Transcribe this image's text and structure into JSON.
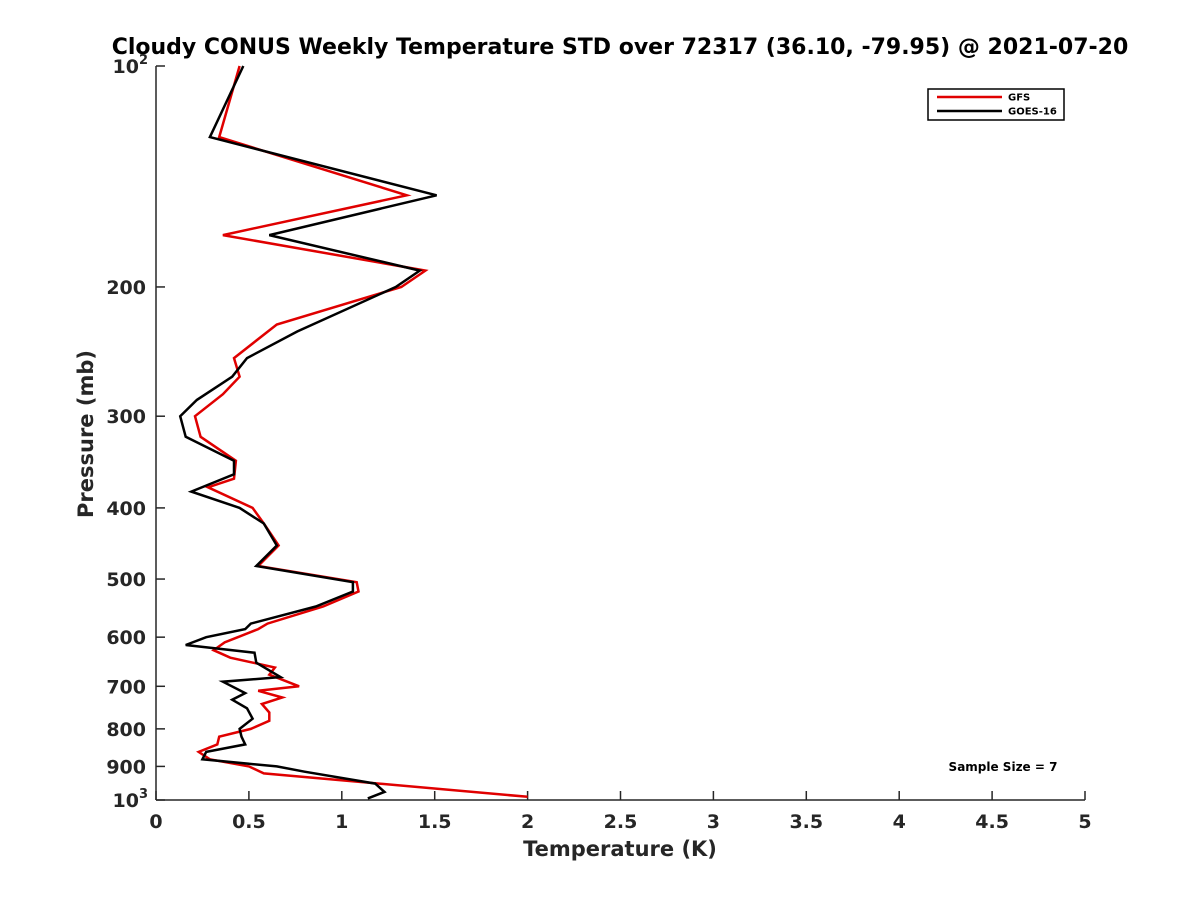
{
  "chart_data": {
    "type": "line",
    "title": "Cloudy CONUS Weekly Temperature STD over 72317 (36.10, -79.95) @ 2021-07-20",
    "xlabel": "Temperature (K)",
    "ylabel": "Pressure (mb)",
    "xlim": [
      0,
      5
    ],
    "ylim": [
      100,
      1000
    ],
    "y_scale": "log",
    "y_reversed": true,
    "x_ticks": [
      "0",
      "0.5",
      "1",
      "1.5",
      "2",
      "2.5",
      "3",
      "3.5",
      "4",
      "4.5",
      "5"
    ],
    "y_ticks": [
      {
        "value": 100,
        "base": "10",
        "exp": "2"
      },
      {
        "value": 200,
        "label": "200"
      },
      {
        "value": 300,
        "label": "300"
      },
      {
        "value": 400,
        "label": "400"
      },
      {
        "value": 500,
        "label": "500"
      },
      {
        "value": 600,
        "label": "600"
      },
      {
        "value": 700,
        "label": "700"
      },
      {
        "value": 800,
        "label": "800"
      },
      {
        "value": 900,
        "label": "900"
      },
      {
        "value": 1000,
        "base": "10",
        "exp": "3"
      }
    ],
    "grid": false,
    "legend_position": "top-right",
    "annotation": "Sample Size = 7",
    "series": [
      {
        "name": "GFS",
        "color": "#e00000",
        "points": [
          [
            0.45,
            100
          ],
          [
            0.34,
            125
          ],
          [
            1.35,
            150
          ],
          [
            0.36,
            170
          ],
          [
            1.45,
            190
          ],
          [
            1.32,
            200
          ],
          [
            0.65,
            225
          ],
          [
            0.42,
            250
          ],
          [
            0.45,
            265
          ],
          [
            0.36,
            280
          ],
          [
            0.21,
            300
          ],
          [
            0.24,
            320
          ],
          [
            0.43,
            345
          ],
          [
            0.42,
            365
          ],
          [
            0.28,
            375
          ],
          [
            0.52,
            400
          ],
          [
            0.58,
            420
          ],
          [
            0.66,
            450
          ],
          [
            0.55,
            480
          ],
          [
            1.08,
            505
          ],
          [
            1.09,
            520
          ],
          [
            0.9,
            545
          ],
          [
            0.6,
            575
          ],
          [
            0.55,
            585
          ],
          [
            0.44,
            600
          ],
          [
            0.37,
            610
          ],
          [
            0.31,
            625
          ],
          [
            0.4,
            640
          ],
          [
            0.64,
            660
          ],
          [
            0.61,
            675
          ],
          [
            0.77,
            700
          ],
          [
            0.55,
            710
          ],
          [
            0.68,
            725
          ],
          [
            0.57,
            740
          ],
          [
            0.61,
            760
          ],
          [
            0.61,
            780
          ],
          [
            0.51,
            800
          ],
          [
            0.34,
            820
          ],
          [
            0.33,
            840
          ],
          [
            0.23,
            860
          ],
          [
            0.29,
            880
          ],
          [
            0.5,
            900
          ],
          [
            0.58,
            920
          ],
          [
            2.0,
            990
          ]
        ]
      },
      {
        "name": "GOES-16",
        "color": "#000000",
        "points": [
          [
            0.47,
            100
          ],
          [
            0.29,
            125
          ],
          [
            1.51,
            150
          ],
          [
            0.61,
            170
          ],
          [
            1.42,
            190
          ],
          [
            1.29,
            200
          ],
          [
            0.76,
            230
          ],
          [
            0.49,
            250
          ],
          [
            0.41,
            265
          ],
          [
            0.22,
            285
          ],
          [
            0.13,
            300
          ],
          [
            0.16,
            320
          ],
          [
            0.42,
            345
          ],
          [
            0.42,
            360
          ],
          [
            0.19,
            380
          ],
          [
            0.45,
            400
          ],
          [
            0.58,
            420
          ],
          [
            0.65,
            450
          ],
          [
            0.54,
            480
          ],
          [
            1.06,
            505
          ],
          [
            1.06,
            520
          ],
          [
            0.86,
            545
          ],
          [
            0.51,
            575
          ],
          [
            0.48,
            585
          ],
          [
            0.27,
            600
          ],
          [
            0.16,
            615
          ],
          [
            0.53,
            630
          ],
          [
            0.54,
            650
          ],
          [
            0.67,
            680
          ],
          [
            0.36,
            690
          ],
          [
            0.48,
            715
          ],
          [
            0.41,
            730
          ],
          [
            0.49,
            750
          ],
          [
            0.52,
            775
          ],
          [
            0.45,
            800
          ],
          [
            0.46,
            820
          ],
          [
            0.48,
            840
          ],
          [
            0.27,
            860
          ],
          [
            0.25,
            880
          ],
          [
            0.65,
            900
          ],
          [
            0.8,
            915
          ],
          [
            1.18,
            950
          ],
          [
            1.23,
            975
          ],
          [
            1.14,
            995
          ]
        ]
      }
    ]
  }
}
